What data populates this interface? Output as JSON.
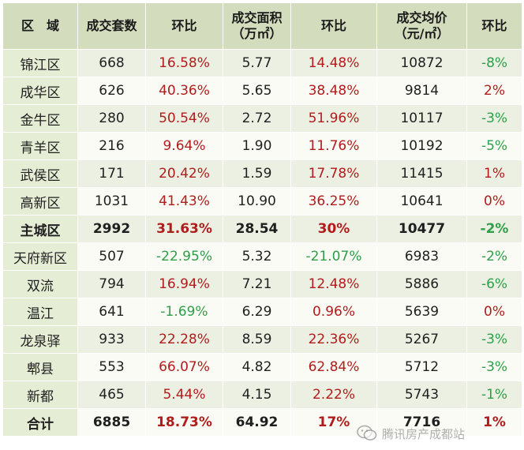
{
  "table": {
    "headers": [
      {
        "l1": "区　域",
        "l2": ""
      },
      {
        "l1": "成交套数",
        "l2": ""
      },
      {
        "l1": "环比",
        "l2": ""
      },
      {
        "l1": "成交面积",
        "l2": "（万㎡）"
      },
      {
        "l1": "环比",
        "l2": ""
      },
      {
        "l1": "成交均价",
        "l2": "（元/㎡）"
      },
      {
        "l1": "环比",
        "l2": ""
      }
    ],
    "rows": [
      {
        "name": "锦江区",
        "units": "668",
        "units_chg": "16.58%",
        "area": "5.77",
        "area_chg": "14.48%",
        "price": "10872",
        "price_chg": "-8%",
        "bold": false
      },
      {
        "name": "成华区",
        "units": "626",
        "units_chg": "40.36%",
        "area": "5.65",
        "area_chg": "38.48%",
        "price": "9814",
        "price_chg": "2%",
        "bold": false
      },
      {
        "name": "金牛区",
        "units": "280",
        "units_chg": "50.54%",
        "area": "2.72",
        "area_chg": "51.96%",
        "price": "10117",
        "price_chg": "-3%",
        "bold": false
      },
      {
        "name": "青羊区",
        "units": "216",
        "units_chg": "9.64%",
        "area": "1.90",
        "area_chg": "11.76%",
        "price": "10192",
        "price_chg": "-5%",
        "bold": false
      },
      {
        "name": "武侯区",
        "units": "171",
        "units_chg": "20.42%",
        "area": "1.59",
        "area_chg": "17.78%",
        "price": "11415",
        "price_chg": "1%",
        "bold": false
      },
      {
        "name": "高新区",
        "units": "1031",
        "units_chg": "41.43%",
        "area": "10.90",
        "area_chg": "36.25%",
        "price": "10641",
        "price_chg": "0%",
        "bold": false
      },
      {
        "name": "主城区",
        "units": "2992",
        "units_chg": "31.63%",
        "area": "28.54",
        "area_chg": "30%",
        "price": "10477",
        "price_chg": "-2%",
        "bold": true
      },
      {
        "name": "天府新区",
        "units": "507",
        "units_chg": "-22.95%",
        "area": "5.32",
        "area_chg": "-21.07%",
        "price": "6983",
        "price_chg": "-2%",
        "bold": false
      },
      {
        "name": "双流",
        "units": "794",
        "units_chg": "16.94%",
        "area": "7.21",
        "area_chg": "12.48%",
        "price": "5886",
        "price_chg": "-6%",
        "bold": false
      },
      {
        "name": "温江",
        "units": "641",
        "units_chg": "-1.69%",
        "area": "6.29",
        "area_chg": "0.96%",
        "price": "5639",
        "price_chg": "0%",
        "bold": false
      },
      {
        "name": "龙泉驿",
        "units": "933",
        "units_chg": "22.28%",
        "area": "8.59",
        "area_chg": "22.36%",
        "price": "5267",
        "price_chg": "-3%",
        "bold": false
      },
      {
        "name": "郫县",
        "units": "553",
        "units_chg": "66.07%",
        "area": "4.82",
        "area_chg": "62.84%",
        "price": "5712",
        "price_chg": "-3%",
        "bold": false
      },
      {
        "name": "新都",
        "units": "465",
        "units_chg": "5.44%",
        "area": "4.15",
        "area_chg": "2.22%",
        "price": "5743",
        "price_chg": "-1%",
        "bold": false
      },
      {
        "name": "合计",
        "units": "6885",
        "units_chg": "18.73%",
        "area": "64.92",
        "area_chg": "17%",
        "price": "7716",
        "price_chg": "1%",
        "bold": true
      }
    ]
  },
  "watermark": {
    "text": "腾讯房产成都站",
    "icon": "wechat-icon"
  },
  "colors": {
    "increase": "#b11c1c",
    "decrease": "#2f9e49",
    "header_bg": "#d3dcbd",
    "row_even": "#ecf0e2",
    "row_odd": "#f9fbf4"
  }
}
